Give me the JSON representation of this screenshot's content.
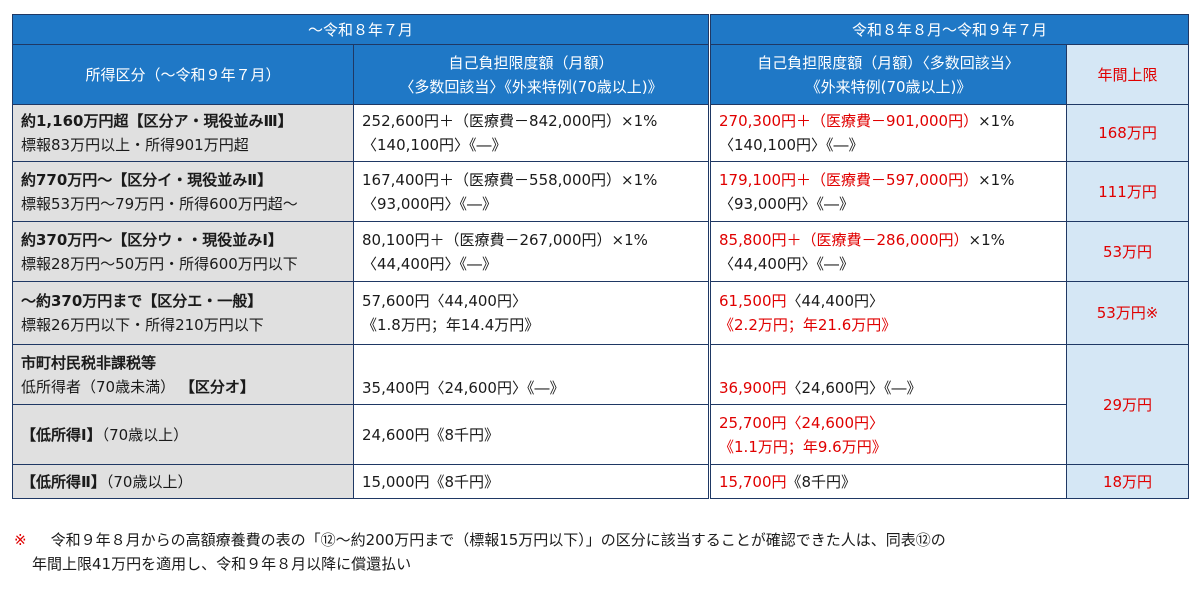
{
  "header": {
    "period_old": "～令和８年７月",
    "period_new": "令和８年８月～令和９年７月",
    "col_income": "所得区分（～令和９年７月）",
    "col_old_l1": "自己負担限度額（月額）",
    "col_old_l2": "〈多数回該当〉《外来特例(70歳以上)》",
    "col_new_l1": "自己負担限度額（月額）〈多数回該当〉",
    "col_new_l2": "《外来特例(70歳以上)》",
    "col_annual": "年間上限"
  },
  "rows": [
    {
      "cat_l1": "約1,160万円超【区分ア・現役並みⅢ】",
      "cat_l2": "標報83万円以上・所得901万円超",
      "old_l1": "252,600円＋（医療費－842,000円）×1%",
      "old_l2": "〈140,100円〉《―》",
      "new_l1a": "270,300円＋（医療費－901,000円）",
      "new_l1b": "×1%",
      "new_l2": "〈140,100円〉《―》",
      "annual": "168万円"
    },
    {
      "cat_l1": "約770万円～【区分イ・現役並みⅡ】",
      "cat_l2": "標報53万円～79万円・所得600万円超～",
      "old_l1": "167,400円＋（医療費－558,000円）×1%",
      "old_l2": "〈93,000円〉《―》",
      "new_l1a": "179,100円＋（医療費－597,000円）",
      "new_l1b": "×1%",
      "new_l2": "〈93,000円〉《―》",
      "annual": "111万円"
    },
    {
      "cat_l1": "約370万円～【区分ウ・・現役並みⅠ】",
      "cat_l2": "標報28万円～50万円・所得600万円以下",
      "old_l1": "80,100円＋（医療費－267,000円）×1%",
      "old_l2": "〈44,400円〉《―》",
      "new_l1a": "85,800円＋（医療費－286,000円）",
      "new_l1b": "×1%",
      "new_l2": "〈44,400円〉《―》",
      "annual": "53万円"
    },
    {
      "cat_l1": "～約370万円まで【区分エ・一般】",
      "cat_l2": "標報26万円以下・所得210万円以下",
      "old_l1": "57,600円〈44,400円〉",
      "old_l2": "《1.8万円；年14.4万円》",
      "new_l1": "61,500円",
      "new_l1b": "〈44,400円〉",
      "new_l2": "《2.2万円；年21.6万円》",
      "annual": "53万円※"
    }
  ],
  "low": {
    "cat_l1": "市町村民税非課税等",
    "cat_l2a": "低所得者（70歳未満）",
    "cat_l2b": "【区分オ】",
    "old": "35,400円〈24,600円〉《―》",
    "new_a": "36,900円",
    "new_b": "〈24,600円〉《―》",
    "annual": "29万円"
  },
  "low1": {
    "cat_a": "【低所得Ⅰ】",
    "cat_b": "（70歳以上）",
    "old": "24,600円《8千円》",
    "new_l1a": "25,700円〈24,600円〉",
    "new_l2": "《1.1万円；年9.6万円》"
  },
  "low2": {
    "cat_a": "【低所得Ⅱ】",
    "cat_b": "（70歳以上）",
    "old": "15,000円《8千円》",
    "new_a": "15,700円",
    "new_b": "《8千円》",
    "annual": "18万円"
  },
  "footnote": {
    "mark": "※",
    "line1": "令和９年８月からの高額療養費の表の「⑫～約200万円まで（標報15万円以下）」の区分に該当することが確認できた人は、同表⑫の",
    "line2": "年間上限41万円を適用し、令和９年８月以降に償還払い"
  }
}
